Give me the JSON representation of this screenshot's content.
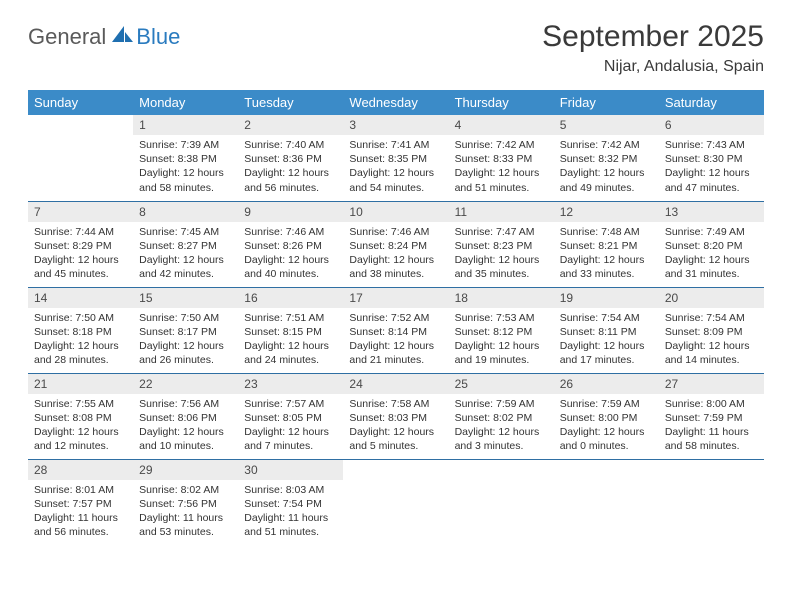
{
  "logo": {
    "text1": "General",
    "text2": "Blue"
  },
  "title": "September 2025",
  "location": "Nijar, Andalusia, Spain",
  "header_color": "#3b8bc8",
  "divider_color": "#2f6fa3",
  "daynum_bg": "#ececec",
  "weekdays": [
    "Sunday",
    "Monday",
    "Tuesday",
    "Wednesday",
    "Thursday",
    "Friday",
    "Saturday"
  ],
  "weeks": [
    [
      null,
      {
        "n": "1",
        "sunrise": "7:39 AM",
        "sunset": "8:38 PM",
        "daylight": "12 hours and 58 minutes."
      },
      {
        "n": "2",
        "sunrise": "7:40 AM",
        "sunset": "8:36 PM",
        "daylight": "12 hours and 56 minutes."
      },
      {
        "n": "3",
        "sunrise": "7:41 AM",
        "sunset": "8:35 PM",
        "daylight": "12 hours and 54 minutes."
      },
      {
        "n": "4",
        "sunrise": "7:42 AM",
        "sunset": "8:33 PM",
        "daylight": "12 hours and 51 minutes."
      },
      {
        "n": "5",
        "sunrise": "7:42 AM",
        "sunset": "8:32 PM",
        "daylight": "12 hours and 49 minutes."
      },
      {
        "n": "6",
        "sunrise": "7:43 AM",
        "sunset": "8:30 PM",
        "daylight": "12 hours and 47 minutes."
      }
    ],
    [
      {
        "n": "7",
        "sunrise": "7:44 AM",
        "sunset": "8:29 PM",
        "daylight": "12 hours and 45 minutes."
      },
      {
        "n": "8",
        "sunrise": "7:45 AM",
        "sunset": "8:27 PM",
        "daylight": "12 hours and 42 minutes."
      },
      {
        "n": "9",
        "sunrise": "7:46 AM",
        "sunset": "8:26 PM",
        "daylight": "12 hours and 40 minutes."
      },
      {
        "n": "10",
        "sunrise": "7:46 AM",
        "sunset": "8:24 PM",
        "daylight": "12 hours and 38 minutes."
      },
      {
        "n": "11",
        "sunrise": "7:47 AM",
        "sunset": "8:23 PM",
        "daylight": "12 hours and 35 minutes."
      },
      {
        "n": "12",
        "sunrise": "7:48 AM",
        "sunset": "8:21 PM",
        "daylight": "12 hours and 33 minutes."
      },
      {
        "n": "13",
        "sunrise": "7:49 AM",
        "sunset": "8:20 PM",
        "daylight": "12 hours and 31 minutes."
      }
    ],
    [
      {
        "n": "14",
        "sunrise": "7:50 AM",
        "sunset": "8:18 PM",
        "daylight": "12 hours and 28 minutes."
      },
      {
        "n": "15",
        "sunrise": "7:50 AM",
        "sunset": "8:17 PM",
        "daylight": "12 hours and 26 minutes."
      },
      {
        "n": "16",
        "sunrise": "7:51 AM",
        "sunset": "8:15 PM",
        "daylight": "12 hours and 24 minutes."
      },
      {
        "n": "17",
        "sunrise": "7:52 AM",
        "sunset": "8:14 PM",
        "daylight": "12 hours and 21 minutes."
      },
      {
        "n": "18",
        "sunrise": "7:53 AM",
        "sunset": "8:12 PM",
        "daylight": "12 hours and 19 minutes."
      },
      {
        "n": "19",
        "sunrise": "7:54 AM",
        "sunset": "8:11 PM",
        "daylight": "12 hours and 17 minutes."
      },
      {
        "n": "20",
        "sunrise": "7:54 AM",
        "sunset": "8:09 PM",
        "daylight": "12 hours and 14 minutes."
      }
    ],
    [
      {
        "n": "21",
        "sunrise": "7:55 AM",
        "sunset": "8:08 PM",
        "daylight": "12 hours and 12 minutes."
      },
      {
        "n": "22",
        "sunrise": "7:56 AM",
        "sunset": "8:06 PM",
        "daylight": "12 hours and 10 minutes."
      },
      {
        "n": "23",
        "sunrise": "7:57 AM",
        "sunset": "8:05 PM",
        "daylight": "12 hours and 7 minutes."
      },
      {
        "n": "24",
        "sunrise": "7:58 AM",
        "sunset": "8:03 PM",
        "daylight": "12 hours and 5 minutes."
      },
      {
        "n": "25",
        "sunrise": "7:59 AM",
        "sunset": "8:02 PM",
        "daylight": "12 hours and 3 minutes."
      },
      {
        "n": "26",
        "sunrise": "7:59 AM",
        "sunset": "8:00 PM",
        "daylight": "12 hours and 0 minutes."
      },
      {
        "n": "27",
        "sunrise": "8:00 AM",
        "sunset": "7:59 PM",
        "daylight": "11 hours and 58 minutes."
      }
    ],
    [
      {
        "n": "28",
        "sunrise": "8:01 AM",
        "sunset": "7:57 PM",
        "daylight": "11 hours and 56 minutes."
      },
      {
        "n": "29",
        "sunrise": "8:02 AM",
        "sunset": "7:56 PM",
        "daylight": "11 hours and 53 minutes."
      },
      {
        "n": "30",
        "sunrise": "8:03 AM",
        "sunset": "7:54 PM",
        "daylight": "11 hours and 51 minutes."
      },
      null,
      null,
      null,
      null
    ]
  ],
  "labels": {
    "sunrise": "Sunrise: ",
    "sunset": "Sunset: ",
    "daylight": "Daylight: "
  }
}
